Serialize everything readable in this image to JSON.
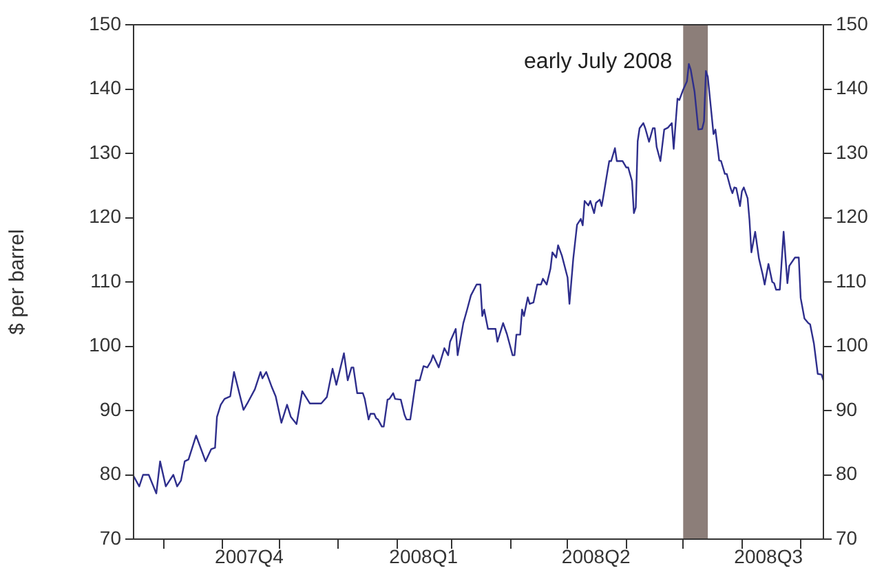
{
  "chart_data": {
    "type": "line",
    "ylabel": "$ per barrel",
    "x": [
      "2007-09-15",
      "2007-09-18",
      "2007-09-20",
      "2007-09-23",
      "2007-09-27",
      "2007-09-29",
      "2007-10-02",
      "2007-10-04",
      "2007-10-06",
      "2007-10-08",
      "2007-10-10",
      "2007-10-12",
      "2007-10-14",
      "2007-10-18",
      "2007-10-23",
      "2007-10-26",
      "2007-10-28",
      "2007-10-29",
      "2007-10-31",
      "2007-11-02",
      "2007-11-05",
      "2007-11-07",
      "2007-11-12",
      "2007-11-14",
      "2007-11-18",
      "2007-11-21",
      "2007-11-22",
      "2007-11-24",
      "2007-11-27",
      "2007-11-29",
      "2007-12-02",
      "2007-12-05",
      "2007-12-07",
      "2007-12-10",
      "2007-12-13",
      "2007-12-17",
      "2007-12-23",
      "2007-12-26",
      "2007-12-29",
      "2007-12-31",
      "2008-01-04",
      "2008-01-06",
      "2008-01-08",
      "2008-01-09",
      "2008-01-11",
      "2008-01-14",
      "2008-01-15",
      "2008-01-17",
      "2008-01-18",
      "2008-01-20",
      "2008-01-21",
      "2008-01-22",
      "2008-01-24",
      "2008-01-25",
      "2008-01-27",
      "2008-01-28",
      "2008-01-30",
      "2008-01-31",
      "2008-02-03",
      "2008-02-05",
      "2008-02-06",
      "2008-02-08",
      "2008-02-11",
      "2008-02-13",
      "2008-02-15",
      "2008-02-17",
      "2008-02-19",
      "2008-02-20",
      "2008-02-23",
      "2008-02-26",
      "2008-02-28",
      "2008-02-29",
      "2008-03-03",
      "2008-03-04",
      "2008-03-07",
      "2008-03-09",
      "2008-03-11",
      "2008-03-14",
      "2008-03-16",
      "2008-03-17",
      "2008-03-18",
      "2008-03-20",
      "2008-03-24",
      "2008-03-25",
      "2008-03-28",
      "2008-03-30",
      "2008-04-02",
      "2008-04-03",
      "2008-04-04",
      "2008-04-06",
      "2008-04-07",
      "2008-04-08",
      "2008-04-10",
      "2008-04-11",
      "2008-04-13",
      "2008-04-15",
      "2008-04-17",
      "2008-04-18",
      "2008-04-20",
      "2008-04-22",
      "2008-04-23",
      "2008-04-25",
      "2008-04-26",
      "2008-04-28",
      "2008-05-01",
      "2008-05-02",
      "2008-05-04",
      "2008-05-06",
      "2008-05-08",
      "2008-05-09",
      "2008-05-10",
      "2008-05-12",
      "2008-05-13",
      "2008-05-15",
      "2008-05-16",
      "2008-05-18",
      "2008-05-19",
      "2008-05-20",
      "2008-05-22",
      "2008-05-23",
      "2008-05-24",
      "2008-05-26",
      "2008-05-27",
      "2008-05-30",
      "2008-06-01",
      "2008-06-02",
      "2008-06-04",
      "2008-06-05",
      "2008-06-06",
      "2008-06-07",
      "2008-06-08",
      "2008-06-10",
      "2008-06-11",
      "2008-06-13",
      "2008-06-15",
      "2008-06-16",
      "2008-06-17",
      "2008-06-19",
      "2008-06-21",
      "2008-06-23",
      "2008-06-25",
      "2008-06-26",
      "2008-06-28",
      "2008-06-29",
      "2008-07-01",
      "2008-07-03",
      "2008-07-04",
      "2008-07-05",
      "2008-07-07",
      "2008-07-09",
      "2008-07-11",
      "2008-07-12",
      "2008-07-13",
      "2008-07-14",
      "2008-07-16",
      "2008-07-17",
      "2008-07-18",
      "2008-07-20",
      "2008-07-21",
      "2008-07-23",
      "2008-07-24",
      "2008-07-26",
      "2008-07-27",
      "2008-07-28",
      "2008-07-29",
      "2008-07-31",
      "2008-08-01",
      "2008-08-02",
      "2008-08-04",
      "2008-08-05",
      "2008-08-06",
      "2008-08-08",
      "2008-08-10",
      "2008-08-12",
      "2008-08-13",
      "2008-08-15",
      "2008-08-17",
      "2008-08-18",
      "2008-08-19",
      "2008-08-21",
      "2008-08-23",
      "2008-08-25",
      "2008-08-26",
      "2008-08-29",
      "2008-08-31",
      "2008-09-01",
      "2008-09-03",
      "2008-09-05",
      "2008-09-06",
      "2008-09-08",
      "2008-09-10",
      "2008-09-12",
      "2008-09-13"
    ],
    "series": [
      {
        "color": "#2e2e8c",
        "values": [
          79.8,
          78.2,
          80,
          80,
          77.1,
          82.1,
          78.2,
          79.1,
          80,
          78.2,
          79.1,
          82.1,
          82.4,
          86.1,
          82.1,
          84,
          84.2,
          89,
          90.9,
          91.8,
          92.2,
          96,
          90.1,
          91.1,
          93.3,
          96,
          95,
          96,
          93.6,
          92.2,
          88.1,
          90.9,
          89,
          87.9,
          93,
          91.1,
          91.1,
          92.1,
          96.5,
          94,
          98.9,
          94.7,
          96.7,
          96.7,
          92.7,
          92.7,
          91.8,
          88.6,
          89.5,
          89.5,
          88.8,
          88.6,
          87.5,
          87.5,
          91.7,
          91.8,
          92.7,
          91.8,
          91.7,
          89.3,
          88.6,
          88.6,
          94.7,
          94.7,
          96.9,
          96.7,
          97.7,
          98.6,
          96.7,
          99.7,
          98.6,
          100.7,
          102.7,
          98.6,
          103.6,
          105.7,
          107.9,
          109.6,
          109.6,
          104.7,
          105.7,
          102.7,
          102.7,
          100.7,
          103.6,
          101.9,
          98.6,
          98.6,
          101.8,
          101.8,
          105.7,
          104.7,
          107.6,
          106.6,
          106.8,
          109.6,
          109.6,
          110.5,
          109.6,
          112.1,
          114.6,
          113.8,
          115.7,
          114.1,
          110.7,
          106.6,
          113.6,
          118.9,
          119.8,
          118.8,
          122.6,
          121.9,
          122.6,
          120.7,
          122.3,
          122.8,
          121.8,
          123.5,
          127.1,
          128.8,
          128.8,
          130.8,
          128.8,
          128.8,
          127.8,
          127.8,
          125.7,
          120.7,
          121.6,
          131.9,
          133.9,
          134.7,
          133.9,
          131.8,
          133.9,
          133.9,
          131,
          128.8,
          133.7,
          134,
          134.7,
          130.7,
          138.5,
          138.3,
          139.9,
          141.2,
          143.9,
          143,
          139.6,
          133.7,
          133.8,
          135,
          142.8,
          141.9,
          136,
          133,
          133.7,
          128.9,
          128.8,
          126.8,
          126.8,
          124.6,
          123.8,
          124.7,
          124.6,
          121.8,
          124.1,
          124.7,
          123,
          119.6,
          114.6,
          117.8,
          113.6,
          111.1,
          109.6,
          112.8,
          110,
          109.8,
          108.8,
          108.8,
          117.8,
          109.8,
          112.5,
          113.8,
          113.8,
          107.5,
          104.3,
          103.6,
          103.4,
          100.4,
          95.7,
          95.6,
          94.7
        ]
      }
    ],
    "xlim": [
      "2007-09-15",
      "2008-09-13"
    ],
    "xticks": [
      {
        "value": "2007-10-01",
        "label": null
      },
      {
        "value": "2007-11-01",
        "label": null
      },
      {
        "value": "2007-11-15",
        "label": "2007Q4"
      },
      {
        "value": "2007-12-01",
        "label": null
      },
      {
        "value": "2008-01-01",
        "label": null
      },
      {
        "value": "2008-02-01",
        "label": null
      },
      {
        "value": "2008-02-15",
        "label": "2008Q1"
      },
      {
        "value": "2008-03-01",
        "label": null
      },
      {
        "value": "2008-04-01",
        "label": null
      },
      {
        "value": "2008-05-01",
        "label": null
      },
      {
        "value": "2008-05-16",
        "label": "2008Q2"
      },
      {
        "value": "2008-06-01",
        "label": null
      },
      {
        "value": "2008-07-01",
        "label": null
      },
      {
        "value": "2008-08-01",
        "label": null
      },
      {
        "value": "2008-08-15",
        "label": "2008Q3"
      },
      {
        "value": "2008-09-01",
        "label": null
      }
    ],
    "ylim": [
      70,
      150
    ],
    "yticks": [
      70,
      80,
      90,
      100,
      110,
      120,
      130,
      140,
      150
    ],
    "y2lim": [
      70,
      150
    ],
    "y2ticks": [
      70,
      80,
      90,
      100,
      110,
      120,
      130,
      140,
      150
    ],
    "bands": [
      {
        "axis": "x",
        "from": "2008-07-01",
        "to": "2008-07-14",
        "label": "early July 2008",
        "color": "#8c7e79"
      }
    ],
    "grid": false,
    "legend": false,
    "marker": "none",
    "line_style": "solid"
  }
}
